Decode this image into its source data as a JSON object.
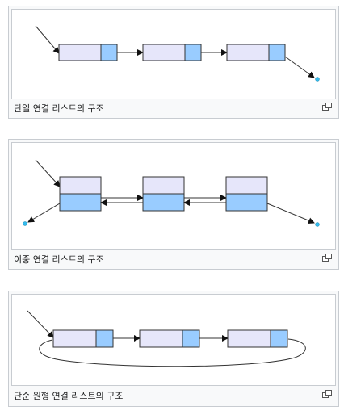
{
  "figures": [
    {
      "caption": "단일 연결 리스트의 구조",
      "magnify_icon": "magnify-clip-icon"
    },
    {
      "caption": "이중 연결 리스트의 구조",
      "magnify_icon": "magnify-clip-icon"
    },
    {
      "caption": "단순 원형 연결 리스트의 구조",
      "magnify_icon": "magnify-clip-icon"
    }
  ],
  "colors": {
    "node_data_fill": "#e6e6fa",
    "node_link_fill": "#99ccff",
    "null_dot": "#33bbee",
    "stroke": "#333333"
  }
}
